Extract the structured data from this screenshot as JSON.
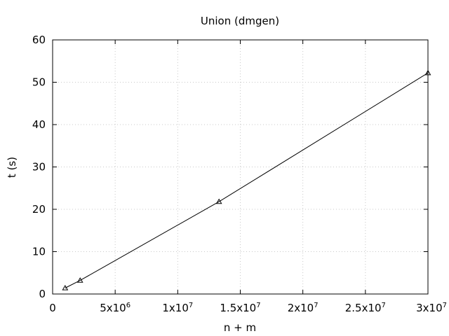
{
  "chart_data": {
    "type": "line",
    "title": "Union (dmgen)",
    "xlabel": "n + m",
    "ylabel": "t (s)",
    "xlim": [
      0,
      30000000
    ],
    "ylim": [
      0,
      60
    ],
    "grid": true,
    "x_ticks": [
      {
        "value": 0,
        "base": "0",
        "exp": ""
      },
      {
        "value": 5000000,
        "base": "5x10",
        "exp": "6"
      },
      {
        "value": 10000000,
        "base": "1x10",
        "exp": "7"
      },
      {
        "value": 15000000,
        "base": "1.5x10",
        "exp": "7"
      },
      {
        "value": 20000000,
        "base": "2x10",
        "exp": "7"
      },
      {
        "value": 25000000,
        "base": "2.5x10",
        "exp": "7"
      },
      {
        "value": 30000000,
        "base": "3x10",
        "exp": "7"
      }
    ],
    "y_ticks": [
      0,
      10,
      20,
      30,
      40,
      50,
      60
    ],
    "series": [
      {
        "marker": "triangle",
        "color": "#000000",
        "x": [
          1000000,
          2200000,
          13300000,
          30000000
        ],
        "y": [
          1.4,
          3.2,
          21.8,
          52.2
        ]
      }
    ]
  }
}
